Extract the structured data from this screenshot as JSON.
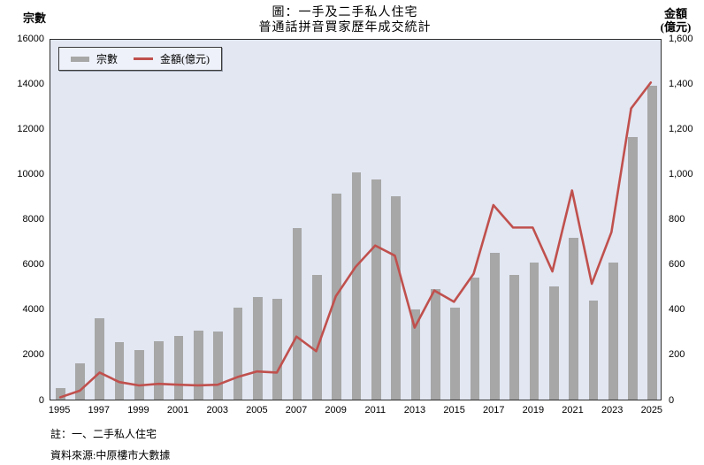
{
  "page": {
    "title_line1": "圖：一手及二手私人住宅",
    "title_line2": "普通話拼音買家歷年成交統計",
    "note1": "註：一、二手私人住宅",
    "note2": "資料來源:中原樓市大數據"
  },
  "chart_data": {
    "type": "bar",
    "title": "圖：一手及二手私人住宅 普通話拼音買家歷年成交統計",
    "categories": [
      1995,
      1996,
      1997,
      1998,
      1999,
      2000,
      2001,
      2002,
      2003,
      2004,
      2005,
      2006,
      2007,
      2008,
      2009,
      2010,
      2011,
      2012,
      2013,
      2014,
      2015,
      2016,
      2017,
      2018,
      2019,
      2020,
      2021,
      2022,
      2023,
      2024,
      2025
    ],
    "series": [
      {
        "name": "宗數",
        "type": "bar",
        "axis": "left",
        "values": [
          500,
          1600,
          3600,
          2550,
          2200,
          2600,
          2800,
          3050,
          3000,
          4050,
          4550,
          4450,
          7600,
          5500,
          9100,
          10050,
          9750,
          9000,
          4000,
          4900,
          4050,
          5400,
          6500,
          5500,
          6050,
          5000,
          7150,
          4400,
          6050,
          11600,
          13900
        ]
      },
      {
        "name": "金額(億元)",
        "type": "line",
        "axis": "right",
        "values": [
          10,
          40,
          120,
          78,
          63,
          70,
          66,
          63,
          66,
          100,
          125,
          120,
          280,
          215,
          460,
          590,
          685,
          640,
          320,
          485,
          435,
          560,
          865,
          765,
          765,
          570,
          930,
          515,
          745,
          1295,
          1410
        ]
      }
    ],
    "left_axis": {
      "title": "宗數",
      "min": 0,
      "max": 16000,
      "tick_labels": [
        "0",
        "2000",
        "4000",
        "6000",
        "8000",
        "10000",
        "12000",
        "14000",
        "16000"
      ]
    },
    "right_axis": {
      "title_line1": "金額",
      "title_line2": "(億元)",
      "min": 0,
      "max": 1600,
      "tick_labels": [
        "0",
        "200",
        "400",
        "600",
        "800",
        "1,000",
        "1,200",
        "1,400",
        "1,600"
      ]
    },
    "x_axis": {
      "tick_labels": [
        "1995",
        "1997",
        "1999",
        "2001",
        "2003",
        "2005",
        "2007",
        "2009",
        "2011",
        "2013",
        "2015",
        "2017",
        "2019",
        "2021",
        "2023",
        "2025"
      ]
    },
    "legend": {
      "position": "top-left",
      "entries": [
        "宗數",
        "金額(億元)"
      ]
    },
    "grid": false,
    "colors": {
      "bar": "#A7A7A7",
      "line": "#C0504D",
      "plot_bg": "#E2E7F2",
      "plot_border": "#2E2E2E",
      "page_bg": "#FFFFFF"
    }
  }
}
